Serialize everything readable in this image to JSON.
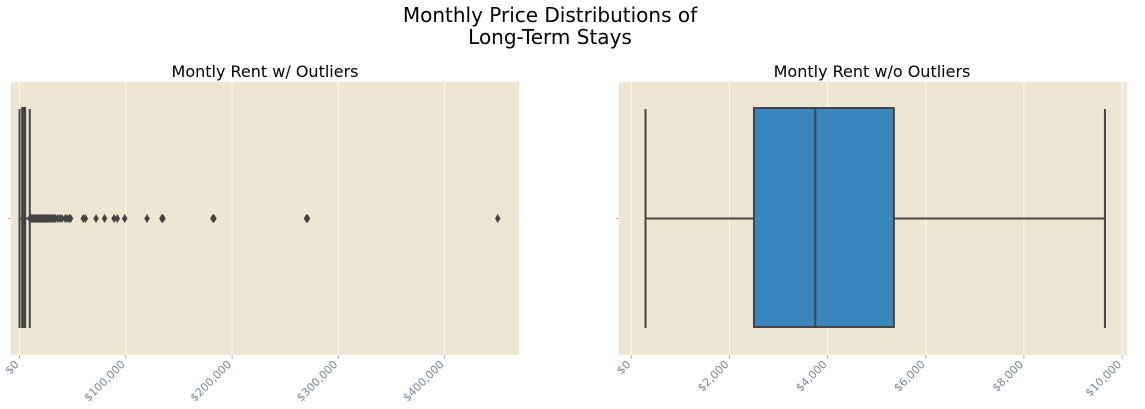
{
  "figure": {
    "title_line1": "Monthly Price Distributions of",
    "title_line2": "Long-Term Stays",
    "background": "#ffffff",
    "plot_background": "#eee6d3",
    "grid_color": "#ffffff",
    "tick_label_color": "#778899",
    "stroke_color": "#444444",
    "box_fill": "#3a87bd"
  },
  "chart_data": [
    {
      "type": "box",
      "title": "Montly Rent w/ Outliers",
      "xlabel": "",
      "ylabel": "",
      "orientation": "horizontal",
      "xlim": [
        -8000,
        470000
      ],
      "grid": true,
      "ticks": [
        {
          "value": 0,
          "label": "$0"
        },
        {
          "value": 100000,
          "label": "$100,000"
        },
        {
          "value": 200000,
          "label": "$200,000"
        },
        {
          "value": 300000,
          "label": "$300,000"
        },
        {
          "value": 400000,
          "label": "$400,000"
        }
      ],
      "box": {
        "whisker_low": 0,
        "q1": 2500,
        "median": 3750,
        "q3": 5350,
        "whisker_high": 9650
      },
      "outliers": [
        9800,
        10300,
        11000,
        11800,
        12600,
        13500,
        14500,
        15500,
        16500,
        17500,
        18500,
        19500,
        20500,
        21500,
        22500,
        23500,
        24500,
        25500,
        26500,
        27500,
        28500,
        29500,
        30500,
        31500,
        32500,
        34000,
        36000,
        38000,
        40000,
        43000,
        45000,
        47000,
        48000,
        60000,
        62000,
        72000,
        80000,
        89000,
        92000,
        99000,
        120000,
        134000,
        135000,
        182000,
        183000,
        270000,
        271000,
        450000
      ]
    },
    {
      "type": "box",
      "title": "Montly Rent w/o Outliers",
      "xlabel": "",
      "ylabel": "",
      "orientation": "horizontal",
      "xlim": [
        -250,
        10100
      ],
      "grid": true,
      "ticks": [
        {
          "value": 0,
          "label": "$0"
        },
        {
          "value": 2000,
          "label": "$2,000"
        },
        {
          "value": 4000,
          "label": "$4,000"
        },
        {
          "value": 6000,
          "label": "$6,000"
        },
        {
          "value": 8000,
          "label": "$8,000"
        },
        {
          "value": 10000,
          "label": "$10,000"
        }
      ],
      "box": {
        "whisker_low": 290,
        "q1": 2500,
        "median": 3750,
        "q3": 5350,
        "whisker_high": 9650
      },
      "outliers": []
    }
  ]
}
